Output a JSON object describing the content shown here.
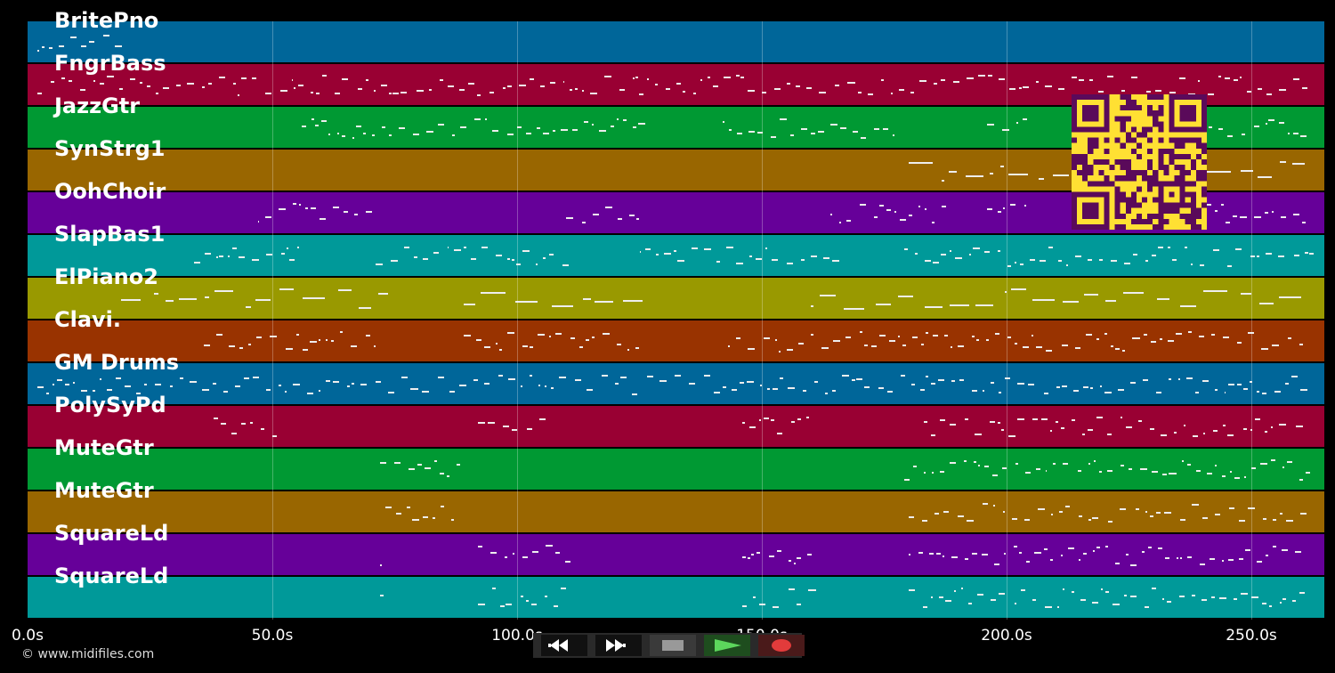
{
  "tracks": [
    {
      "name": "BritePno",
      "color": "#006699"
    },
    {
      "name": "FngrBass",
      "color": "#990033"
    },
    {
      "name": "JazzGtr",
      "color": "#009933"
    },
    {
      "name": "SynStrg1",
      "color": "#996600"
    },
    {
      "name": "OohChoir",
      "color": "#660099"
    },
    {
      "name": "SlapBas1",
      "color": "#009999"
    },
    {
      "name": "ElPiano2",
      "color": "#999900"
    },
    {
      "name": "Clavi.",
      "color": "#993300"
    },
    {
      "name": "GM Drums",
      "color": "#006699"
    },
    {
      "name": "PolySyPd",
      "color": "#990033"
    },
    {
      "name": "MuteGtr",
      "color": "#009933"
    },
    {
      "name": "MuteGtr",
      "color": "#996600"
    },
    {
      "name": "SquareLd",
      "color": "#660099"
    },
    {
      "name": "SquareLd",
      "color": "#009999"
    }
  ],
  "timeline": {
    "duration_s": 265,
    "ticks": [
      "0.0s",
      "50.0s",
      "100.0s",
      "150.0s",
      "200.0s",
      "250.0s"
    ],
    "tick_values_s": [
      0,
      50,
      100,
      150,
      200,
      250
    ]
  },
  "transport": {
    "buttons": [
      {
        "name": "rewind-button",
        "icon": "rewind-icon"
      },
      {
        "name": "fast-forward-button",
        "icon": "fast-forward-icon"
      },
      {
        "name": "stop-button",
        "icon": "stop-icon"
      },
      {
        "name": "play-button",
        "icon": "play-icon"
      },
      {
        "name": "record-button",
        "icon": "record-icon"
      }
    ]
  },
  "footer": {
    "copyright": "© www.midifiles.com"
  },
  "qr": {
    "fg": "#5a0a5a",
    "bg": "#ffe033"
  }
}
